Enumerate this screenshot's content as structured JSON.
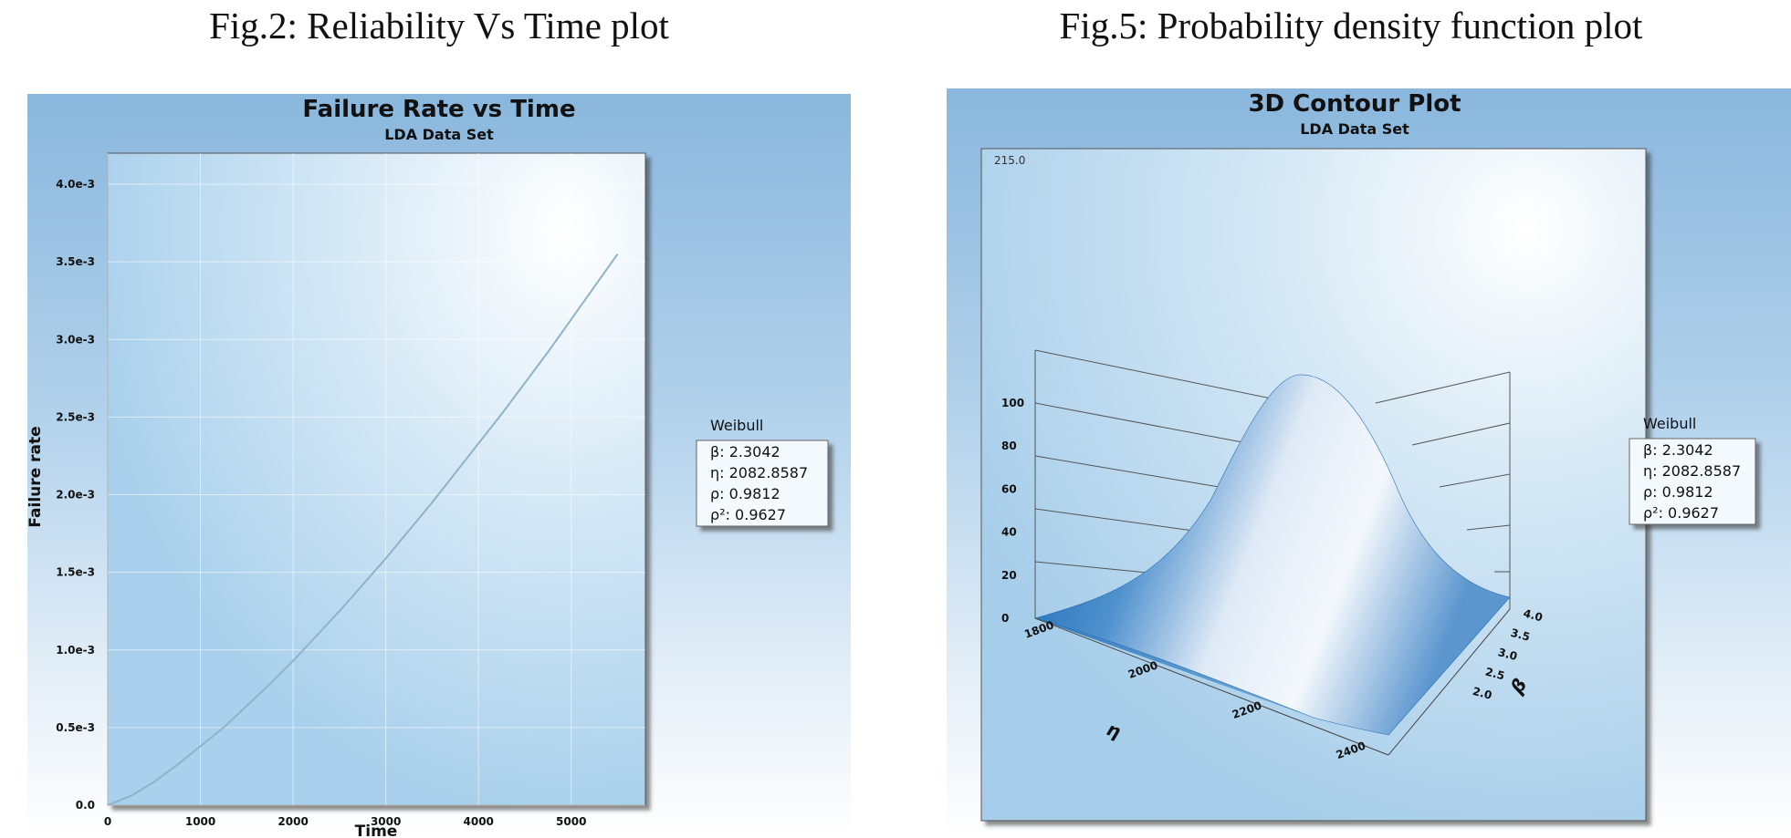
{
  "captions": {
    "left": "Fig.2: Reliability Vs Time plot",
    "right": "Fig.5: Probability density function plot"
  },
  "chart_data": [
    {
      "type": "line",
      "title": "Failure Rate vs Time",
      "subtitle": "LDA Data Set",
      "xlabel": "Time",
      "ylabel": "Failure rate",
      "xlim": [
        0,
        5800
      ],
      "ylim": [
        0,
        0.0042
      ],
      "x_ticks": [
        0,
        1000,
        2000,
        3000,
        4000,
        5000
      ],
      "x_tick_labels": [
        "0",
        "1000",
        "2000",
        "3000",
        "4000",
        "5000"
      ],
      "y_ticks": [
        0,
        0.0005,
        0.001,
        0.0015,
        0.002,
        0.0025,
        0.003,
        0.0035,
        0.004
      ],
      "y_tick_labels": [
        "0.0",
        "0.5e-3",
        "1.0e-3",
        "1.5e-3",
        "2.0e-3",
        "2.5e-3",
        "3.0e-3",
        "3.5e-3",
        "4.0e-3"
      ],
      "grid": true,
      "legend_placement": "right",
      "series": [
        {
          "x": [
            0,
            250,
            500,
            750,
            1000,
            1250,
            1500,
            1750,
            2000,
            2250,
            2500,
            2750,
            3000,
            3250,
            3500,
            3750,
            4000,
            4250,
            4500,
            4750,
            5000,
            5250,
            5500
          ],
          "values": [
            0,
            6e-05,
            0.00015,
            0.00026,
            0.00038,
            0.0005,
            0.00064,
            0.00078,
            0.00093,
            0.00109,
            0.00125,
            0.00142,
            0.00159,
            0.00177,
            0.00195,
            0.00214,
            0.00233,
            0.00252,
            0.00272,
            0.00292,
            0.00313,
            0.00334,
            0.00355
          ]
        }
      ],
      "legend": {
        "title": "Weibull",
        "lines": [
          "β: 2.3042",
          "η: 2082.8587",
          "ρ: 0.9812",
          "ρ²: 0.9627"
        ]
      },
      "colors": {
        "line": "#8fb3c8",
        "panel_top": "#8ab7dd",
        "plot_bg": "#cfe4f4"
      }
    },
    {
      "type": "surface",
      "title": "3D Contour Plot",
      "subtitle": "LDA Data Set",
      "corner_label": "215.0",
      "x_axis_symbol": "η",
      "y_axis_symbol": "β",
      "x_ticks": [
        1800,
        2000,
        2200,
        2400
      ],
      "x_tick_labels": [
        "1800",
        "2000",
        "2200",
        "2400"
      ],
      "y_ticks": [
        2.0,
        2.5,
        3.0,
        3.5,
        4.0
      ],
      "y_tick_labels": [
        "2.0",
        "2.5",
        "3.0",
        "3.5",
        "4.0"
      ],
      "z_ticks": [
        0,
        20,
        40,
        60,
        80,
        100
      ],
      "z_tick_labels": [
        "0",
        "20",
        "40",
        "60",
        "80",
        "100"
      ],
      "peak": {
        "eta": 2082.8587,
        "beta": 2.3042,
        "z": 100
      },
      "legend_placement": "right",
      "legend": {
        "title": "Weibull",
        "lines": [
          "β: 2.3042",
          "η: 2082.8587",
          "ρ: 0.9812",
          "ρ²: 0.9627"
        ]
      },
      "colors": {
        "surface_dark": "#0a5fae",
        "surface_light": "#f2f7fc"
      }
    }
  ]
}
